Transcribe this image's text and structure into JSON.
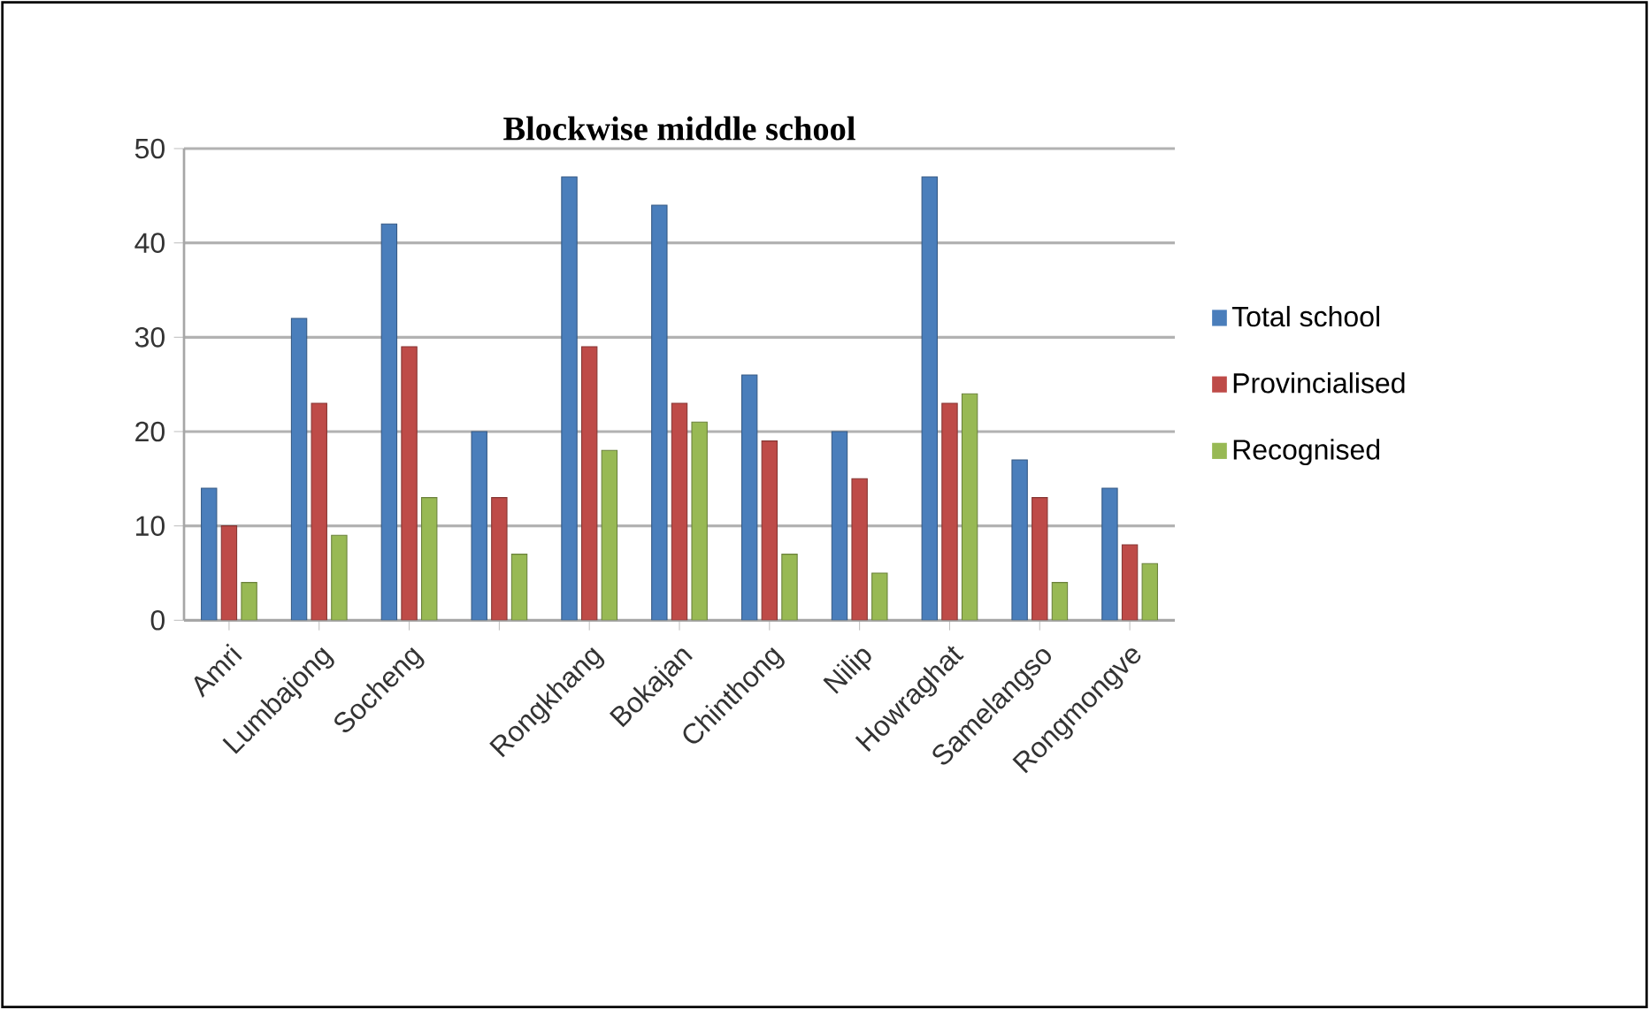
{
  "chart_data": {
    "type": "bar",
    "title": "Blockwise middle school",
    "categories": [
      "Amri",
      "Lumbajong",
      "Socheng",
      null,
      "Rongkhang",
      "Bokajan",
      "Chinthong",
      "Nilip",
      "Howraghat",
      "Samelangso",
      "Rongmongve"
    ],
    "series": [
      {
        "name": "Total school",
        "color": "#4a7ebb",
        "values": [
          14,
          32,
          42,
          20,
          47,
          44,
          26,
          20,
          47,
          17,
          14
        ]
      },
      {
        "name": "Provincialised",
        "color": "#be4b48",
        "values": [
          10,
          23,
          29,
          13,
          29,
          23,
          19,
          15,
          23,
          13,
          8
        ]
      },
      {
        "name": "Recognised",
        "color": "#98b954",
        "values": [
          4,
          9,
          13,
          7,
          18,
          21,
          7,
          5,
          24,
          4,
          6
        ]
      }
    ],
    "ylim": [
      0,
      50
    ],
    "yticks": [
      0,
      10,
      20,
      30,
      40,
      50
    ],
    "grid": "y",
    "legend": "right"
  }
}
